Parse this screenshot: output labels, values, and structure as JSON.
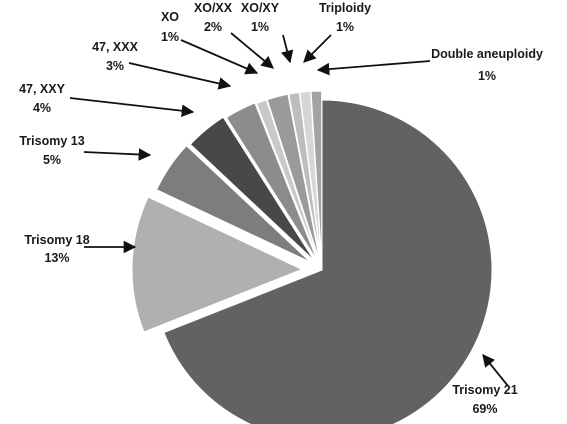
{
  "chart_data": {
    "type": "pie",
    "title": "",
    "slices": [
      {
        "label": "Trisomy 21",
        "value": 69,
        "value_label": "69%",
        "color": "#626262"
      },
      {
        "label": "Trisomy 18",
        "value": 13,
        "value_label": "13%",
        "color": "#b0b0b0"
      },
      {
        "label": "Trisomy 13",
        "value": 5,
        "value_label": "5%",
        "color": "#7d7d7d"
      },
      {
        "label": "47, XXY",
        "value": 4,
        "value_label": "4%",
        "color": "#484848"
      },
      {
        "label": "47, XXX",
        "value": 3,
        "value_label": "3%",
        "color": "#8c8c8c"
      },
      {
        "label": "XO",
        "value": 1,
        "value_label": "1%",
        "color": "#c9c9c9"
      },
      {
        "label": "XO/XX",
        "value": 2,
        "value_label": "2%",
        "color": "#9a9a9a"
      },
      {
        "label": "XO/XY",
        "value": 1,
        "value_label": "1%",
        "color": "#bdbdbd"
      },
      {
        "label": "Triploidy",
        "value": 1,
        "value_label": "1%",
        "color": "#d6d6d6"
      },
      {
        "label": "Double aneuploidy",
        "value": 1,
        "value_label": "1%",
        "color": "#a3a3a3"
      }
    ],
    "legend": "none",
    "label_style": "callout-arrows"
  }
}
